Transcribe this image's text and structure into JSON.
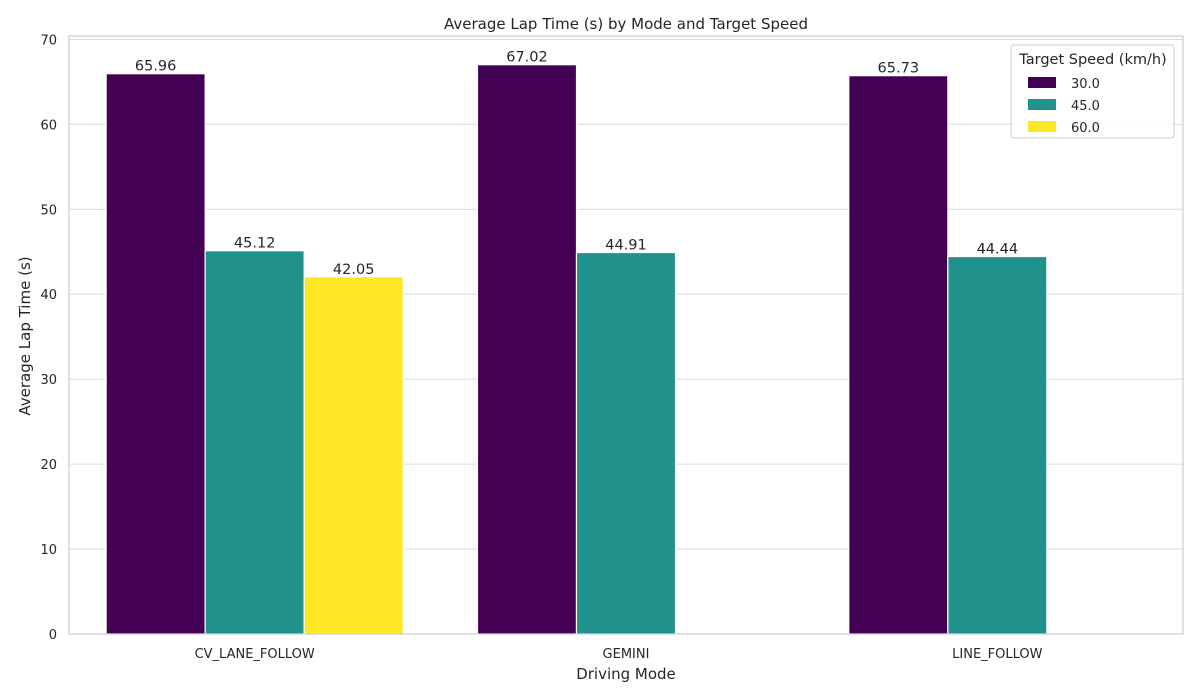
{
  "chart_data": {
    "type": "bar",
    "title": "Average Lap Time (s) by Mode and Target Speed",
    "xlabel": "Driving Mode",
    "ylabel": "Average Lap Time (s)",
    "categories": [
      "CV_LANE_FOLLOW",
      "GEMINI",
      "LINE_FOLLOW"
    ],
    "series": [
      {
        "name": "30.0",
        "color": "#440154",
        "values": [
          65.96,
          67.02,
          65.73
        ]
      },
      {
        "name": "45.0",
        "color": "#21918c",
        "values": [
          45.12,
          44.91,
          44.44
        ]
      },
      {
        "name": "60.0",
        "color": "#fde725",
        "values": [
          42.05,
          null,
          null
        ]
      }
    ],
    "data_labels": [
      [
        "65.96",
        "67.02",
        "65.73"
      ],
      [
        "45.12",
        "44.91",
        "44.44"
      ],
      [
        "42.05",
        null,
        null
      ]
    ],
    "ylim": [
      0,
      70.4
    ],
    "yticks": [
      0,
      10,
      20,
      30,
      40,
      50,
      60,
      70
    ],
    "ytick_labels": [
      "0",
      "10",
      "20",
      "30",
      "40",
      "50",
      "60",
      "70"
    ],
    "grid": true,
    "legend": {
      "title": "Target Speed (km/h)",
      "placement": "top-right"
    }
  }
}
